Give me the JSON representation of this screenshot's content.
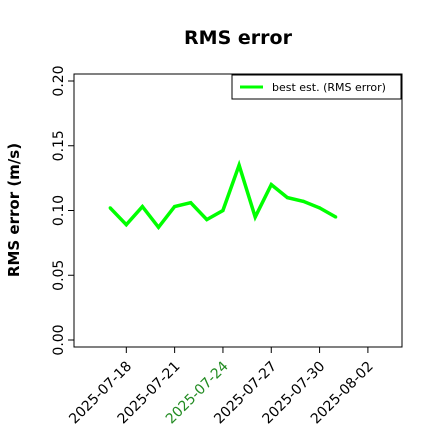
{
  "chart_data": {
    "type": "line",
    "title": "RMS error",
    "xlabel": "",
    "ylabel": "RMS error (m/s)",
    "x": [
      "2025-07-17",
      "2025-07-18",
      "2025-07-19",
      "2025-07-20",
      "2025-07-21",
      "2025-07-22",
      "2025-07-23",
      "2025-07-24",
      "2025-07-25",
      "2025-07-26",
      "2025-07-27",
      "2025-07-28",
      "2025-07-29",
      "2025-07-30",
      "2025-07-31"
    ],
    "series": [
      {
        "name": "best est. (RMS error)",
        "color": "#00ff00",
        "values": [
          0.102,
          0.089,
          0.103,
          0.087,
          0.103,
          0.106,
          0.093,
          0.1,
          0.135,
          0.095,
          0.12,
          0.11,
          0.107,
          0.102,
          0.095
        ]
      }
    ],
    "xlim": [
      "2025-07-15",
      "2025-08-03"
    ],
    "ylim": [
      0.0,
      0.2
    ],
    "xticks": [
      {
        "label": "2025-07-18",
        "date": "2025-07-18",
        "color": "#000000"
      },
      {
        "label": "2025-07-21",
        "date": "2025-07-21",
        "color": "#000000"
      },
      {
        "label": "2025-07-24",
        "date": "2025-07-24",
        "color": "#228b22"
      },
      {
        "label": "2025-07-27",
        "date": "2025-07-27",
        "color": "#000000"
      },
      {
        "label": "2025-07-30",
        "date": "2025-07-30",
        "color": "#000000"
      },
      {
        "label": "2025-08-02",
        "date": "2025-08-02",
        "color": "#000000"
      }
    ],
    "yticks": [
      0.0,
      0.05,
      0.1,
      0.15,
      0.2
    ],
    "ytick_labels": [
      "0.00",
      "0.05",
      "0.10",
      "0.15",
      "0.20"
    ],
    "grid": false,
    "legend": "top-right"
  }
}
